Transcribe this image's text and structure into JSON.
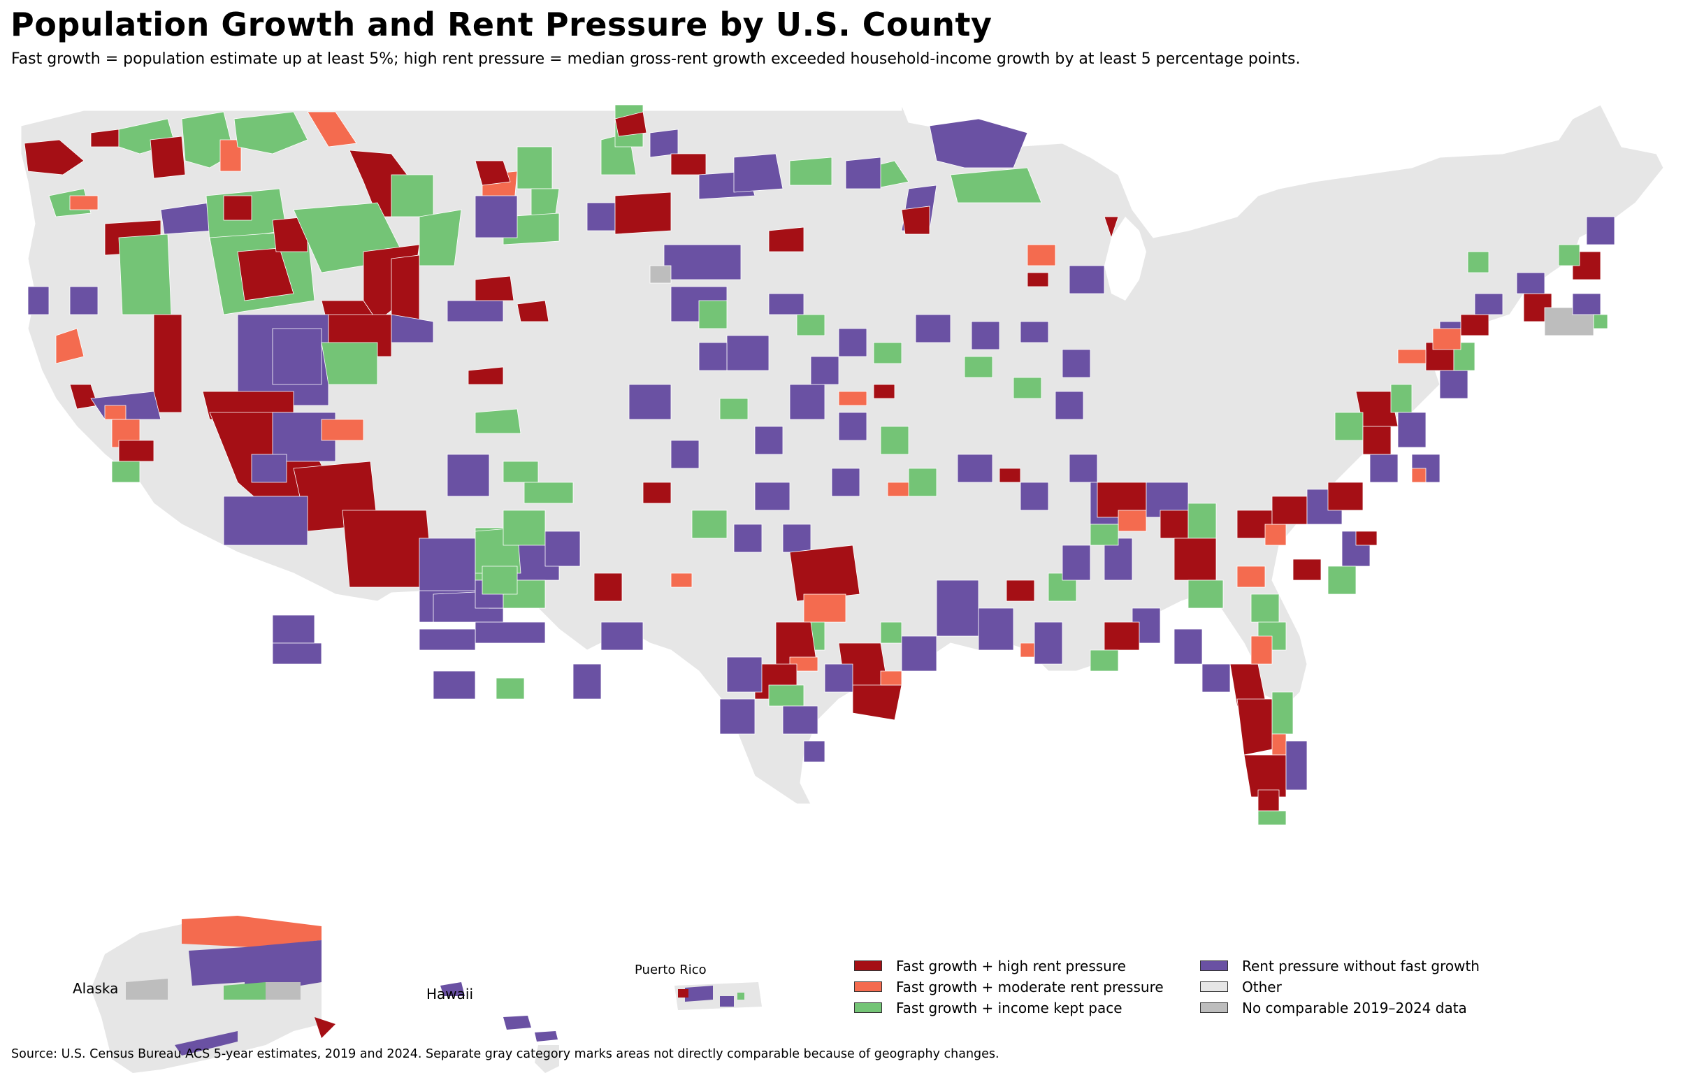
{
  "title": "Population Growth and Rent Pressure by U.S. County",
  "subtitle": "Fast growth = population estimate up at least 5%; high rent pressure = median gross-rent growth exceeded household-income growth by at least 5 percentage points.",
  "source": "Source: U.S. Census Bureau ACS 5-year estimates, 2019 and 2024. Separate gray category marks areas not directly comparable because of geography changes.",
  "insets": {
    "alaska": "Alaska",
    "hawaii": "Hawaii",
    "puerto_rico": "Puerto Rico"
  },
  "legend": [
    {
      "key": "fast_high",
      "label": "Fast growth + high rent pressure",
      "color": "#a50f15"
    },
    {
      "key": "rent_only",
      "label": "Rent pressure without fast growth",
      "color": "#6a51a3"
    },
    {
      "key": "fast_moderate",
      "label": "Fast growth + moderate rent pressure",
      "color": "#f46b4f"
    },
    {
      "key": "other",
      "label": "Other",
      "color": "#e6e6e6"
    },
    {
      "key": "fast_income",
      "label": "Fast growth + income kept pace",
      "color": "#74c476"
    },
    {
      "key": "no_data",
      "label": "No comparable 2019–2024 data",
      "color": "#bdbdbd"
    }
  ]
}
